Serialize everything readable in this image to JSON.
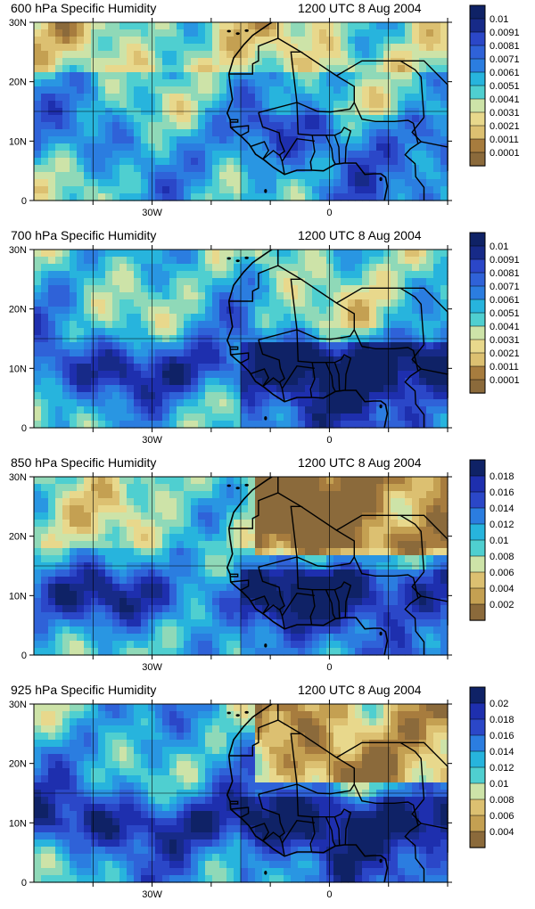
{
  "panels": [
    {
      "title": "600 hPa Specific Humidity",
      "time": "1200 UTC 8 Aug 2004",
      "colors": [
        "#8b6a3b",
        "#a77c3e",
        "#c4a052",
        "#dcc071",
        "#e8d88c",
        "#cde3a8",
        "#8fd9b8",
        "#4fcfd0",
        "#27b4dd",
        "#2996e2",
        "#2b7de0",
        "#2f62d8",
        "#2b47c8",
        "#1e2fae",
        "#172a88",
        "#0f2266"
      ],
      "ticks": [
        "0.01",
        "0.0091",
        "0.0081",
        "0.0071",
        "0.0061",
        "0.0051",
        "0.0041",
        "0.0031",
        "0.0021",
        "0.0011",
        "0.0001"
      ]
    },
    {
      "title": "700 hPa Specific Humidity",
      "time": "1200 UTC 8 Aug 2004",
      "colors": [
        "#8b6a3b",
        "#a77c3e",
        "#c4a052",
        "#dcc071",
        "#e8d88c",
        "#cde3a8",
        "#8fd9b8",
        "#4fcfd0",
        "#27b4dd",
        "#2996e2",
        "#2b7de0",
        "#2f62d8",
        "#2b47c8",
        "#1e2fae",
        "#172a88",
        "#0f2266"
      ],
      "ticks": [
        "0.01",
        "0.0091",
        "0.0081",
        "0.0071",
        "0.0061",
        "0.0051",
        "0.0041",
        "0.0031",
        "0.0021",
        "0.0011",
        "0.0001"
      ]
    },
    {
      "title": "850 hPa Specific Humidity",
      "time": "1200 UTC 8 Aug 2004",
      "colors": [
        "#8b6a3b",
        "#a77c3e",
        "#c4a052",
        "#dcc071",
        "#e8d88c",
        "#cde3a8",
        "#8fd9b8",
        "#4fcfd0",
        "#27b4dd",
        "#2996e2",
        "#2b7de0",
        "#2f62d8",
        "#2b47c8",
        "#1e2fae",
        "#172a88",
        "#0f2266"
      ],
      "ticks": [
        "0.018",
        "0.016",
        "0.014",
        "0.012",
        "0.01",
        "0.008",
        "0.006",
        "0.004",
        "0.002"
      ]
    },
    {
      "title": "925 hPa Specific Humidity",
      "time": "1200 UTC 8 Aug 2004",
      "colors": [
        "#8b6a3b",
        "#a77c3e",
        "#c4a052",
        "#dcc071",
        "#e8d88c",
        "#cde3a8",
        "#8fd9b8",
        "#4fcfd0",
        "#27b4dd",
        "#2996e2",
        "#2b7de0",
        "#2f62d8",
        "#2b47c8",
        "#1e2fae",
        "#172a88",
        "#0f2266"
      ],
      "ticks": [
        "0.02",
        "0.018",
        "0.016",
        "0.014",
        "0.012",
        "0.01",
        "0.008",
        "0.006",
        "0.004"
      ]
    }
  ],
  "axes": {
    "y_labels": [
      "30N",
      "20N",
      "10N",
      "0"
    ],
    "x_labels": [
      "30W",
      "0"
    ]
  }
}
